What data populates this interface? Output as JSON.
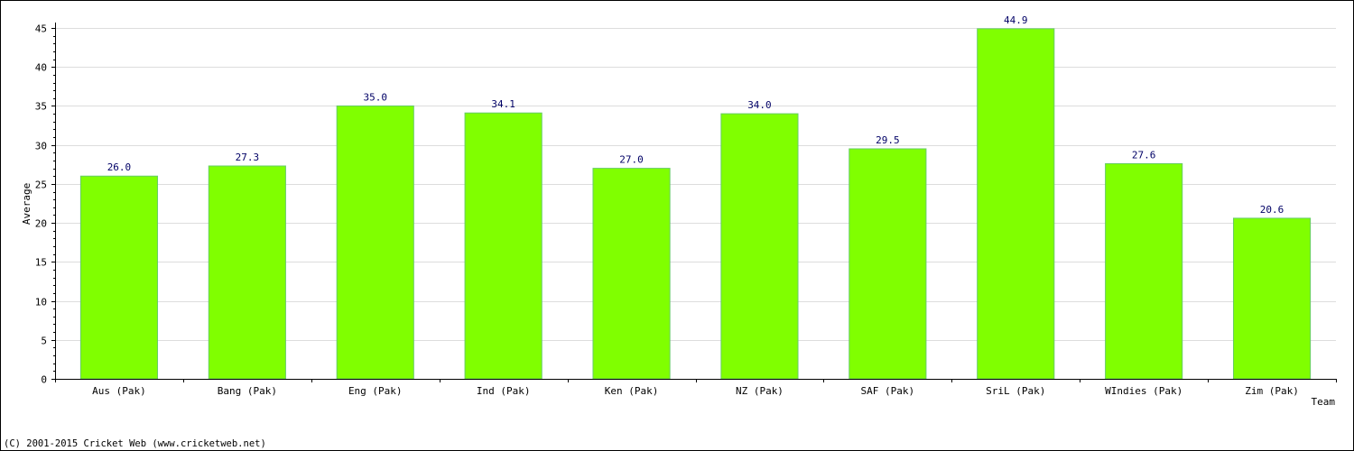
{
  "chart_data": {
    "type": "bar",
    "categories": [
      "Aus (Pak)",
      "Bang (Pak)",
      "Eng (Pak)",
      "Ind (Pak)",
      "Ken (Pak)",
      "NZ (Pak)",
      "SAF (Pak)",
      "SriL (Pak)",
      "WIndies (Pak)",
      "Zim (Pak)"
    ],
    "series": [
      {
        "values": [
          26.0,
          27.3,
          35.0,
          34.1,
          27.0,
          34.0,
          29.5,
          44.9,
          27.6,
          20.6
        ],
        "labels": [
          "26.0",
          "27.3",
          "35.0",
          "34.1",
          "27.0",
          "34.0",
          "29.5",
          "44.9",
          "27.6",
          "20.6"
        ]
      }
    ],
    "title": "",
    "xlabel": "Team",
    "ylabel": "Average",
    "ylim": [
      0,
      45
    ],
    "yticks": [
      0,
      5,
      10,
      15,
      20,
      25,
      30,
      35,
      40,
      45
    ],
    "grid": "horizontal",
    "bar_color": "#80ff00",
    "bar_edge_color": "#66cc66",
    "label_color": "#000066"
  },
  "footer": "(C) 2001-2015 Cricket Web (www.cricketweb.net)"
}
